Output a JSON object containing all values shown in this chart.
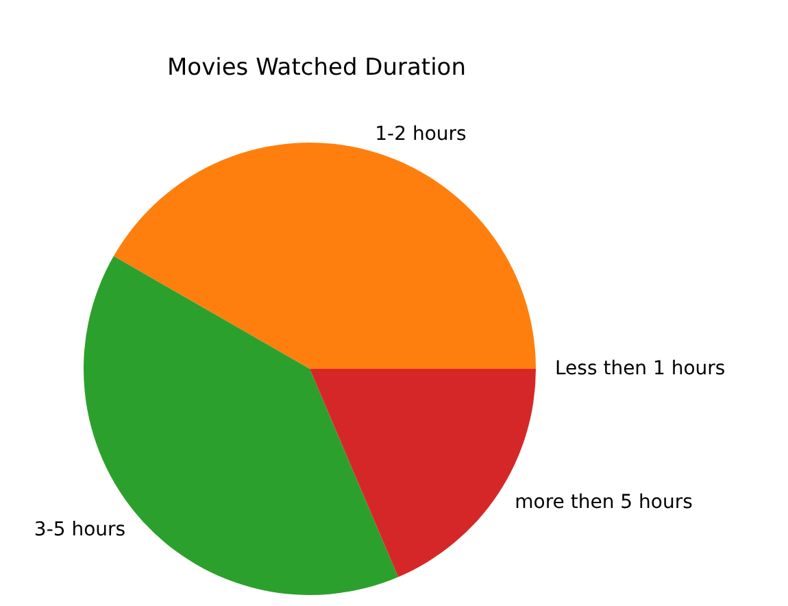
{
  "chart_data": {
    "type": "pie",
    "title": "Movies Watched Duration",
    "categories": [
      "Less then 1 hours",
      "1-2 hours",
      "3-5 hours",
      "more then 5 hours"
    ],
    "values": [
      0,
      41.7,
      39.7,
      18.6
    ],
    "colors": [
      "#1f77b4",
      "#ff7f0e",
      "#2ca02c",
      "#d62728"
    ],
    "legend": false
  }
}
